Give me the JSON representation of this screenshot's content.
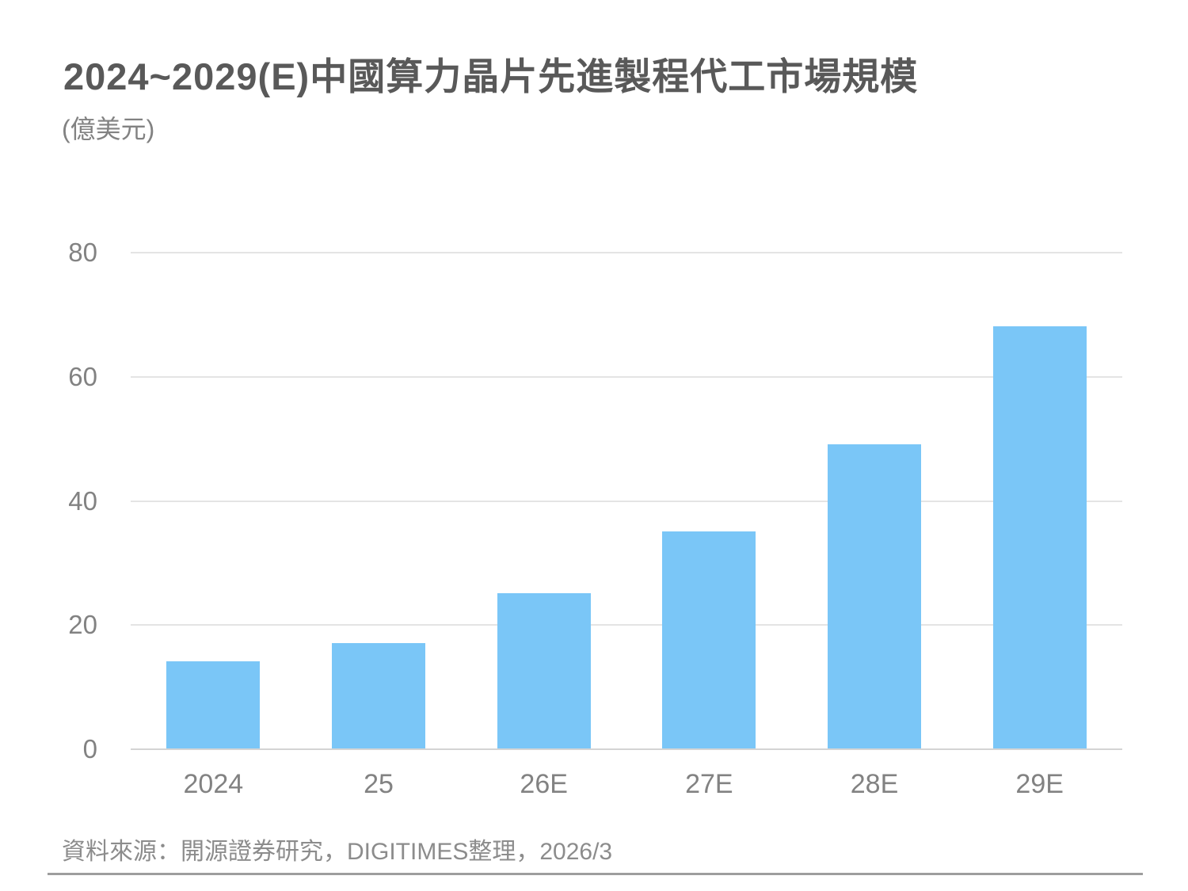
{
  "title": "2024~2029(E)中國算力晶片先進製程代工市場規模",
  "unit_label": "(億美元)",
  "source": "資料來源：開源證券研究，DIGITIMES整理，2026/3",
  "colors": {
    "bar": "#7AC6F7",
    "gridline": "#E4E4E4",
    "axis_line": "#D4D4D4",
    "title_text": "#595959",
    "tick_text": "#828282",
    "source_text": "#8C8C8C",
    "divider": "#9E9E9E"
  },
  "chart_data": {
    "type": "bar",
    "title": "2024~2029(E)中國算力晶片先進製程代工市場規模",
    "subtitle": "(億美元)",
    "categories": [
      "2024",
      "25",
      "26E",
      "27E",
      "28E",
      "29E"
    ],
    "values": [
      14,
      17,
      25,
      35,
      49,
      68
    ],
    "xlabel": "",
    "ylabel": "億美元",
    "ylim": [
      0,
      80
    ],
    "yticks": [
      0,
      20,
      40,
      60,
      80
    ],
    "grid": true,
    "legend": false,
    "source": "資料來源：開源證券研究，DIGITIMES整理，2026/3"
  }
}
